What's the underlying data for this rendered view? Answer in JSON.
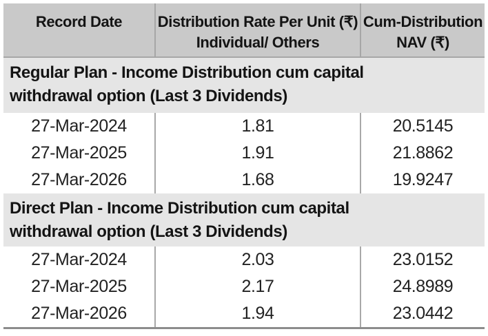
{
  "table": {
    "header": {
      "col1": "Record Date",
      "col2_line1": "Distribution Rate Per Unit (₹)",
      "col2_line2": "Individual/ Others",
      "col3_line1": "Cum-Distribution",
      "col3_line2": "NAV (₹)"
    },
    "sections": [
      {
        "title": "Regular Plan - Income Distribution cum capital withdrawal option (Last 3 Dividends)",
        "rows": [
          {
            "record_date": "27-Mar-2024",
            "rate": "1.81",
            "nav": "20.5145"
          },
          {
            "record_date": "27-Mar-2025",
            "rate": "1.91",
            "nav": "21.8862"
          },
          {
            "record_date": "27-Mar-2026",
            "rate": "1.68",
            "nav": "19.9247"
          }
        ]
      },
      {
        "title": "Direct Plan - Income Distribution cum capital withdrawal option (Last 3 Dividends)",
        "rows": [
          {
            "record_date": "27-Mar-2024",
            "rate": "2.03",
            "nav": "23.0152"
          },
          {
            "record_date": "27-Mar-2025",
            "rate": "2.17",
            "nav": "24.8989"
          },
          {
            "record_date": "27-Mar-2026",
            "rate": "1.94",
            "nav": "23.0442"
          }
        ]
      }
    ],
    "colors": {
      "header_bg": "#c9c9c9",
      "section_bg": "#e5e5e5",
      "row_bg": "#ffffff",
      "column_divider": "#a8a8a8",
      "bottom_border": "#8c8c8c",
      "text": "#1a1a1a"
    }
  }
}
